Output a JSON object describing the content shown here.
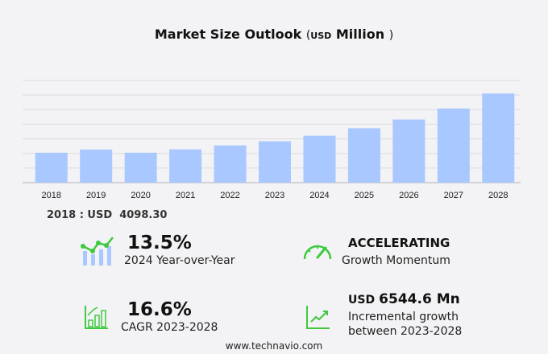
{
  "title": {
    "main": "Market Size Outlook",
    "open": "(",
    "unit_small": "USD",
    "unit": "Million",
    "close": ")"
  },
  "chart_data": {
    "type": "bar",
    "title": "Market Size Outlook (USD Million)",
    "categories": [
      "2018",
      "2019",
      "2020",
      "2021",
      "2022",
      "2023",
      "2024",
      "2025",
      "2026",
      "2027",
      "2028"
    ],
    "values": [
      4098.3,
      4540,
      4100,
      4560,
      5100,
      5667,
      6430,
      7450,
      8650,
      10150,
      12211
    ],
    "ylim": [
      0,
      14000
    ],
    "grid": true,
    "bar_color": "#a8c8ff"
  },
  "base_year": "2018 : USD  4098.30",
  "kpis": {
    "yoy": {
      "value": "13.5%",
      "label": "2024 Year-over-Year",
      "icon": "bar-line-chart-icon"
    },
    "momentum": {
      "value": "ACCELERATING",
      "label": "Growth Momentum",
      "icon": "speedometer-icon"
    },
    "cagr": {
      "value": "16.6%",
      "label": "CAGR 2023-2028",
      "icon": "growth-bars-icon"
    },
    "incremental": {
      "value_prefix": "USD",
      "value": "6544.6 Mn",
      "label1": "Incremental growth",
      "label2": "between 2023-2028",
      "icon": "trend-line-icon"
    }
  },
  "colors": {
    "accent_green": "#3ec93e",
    "bar": "#a8c8ff"
  },
  "footer": "www.technavio.com"
}
